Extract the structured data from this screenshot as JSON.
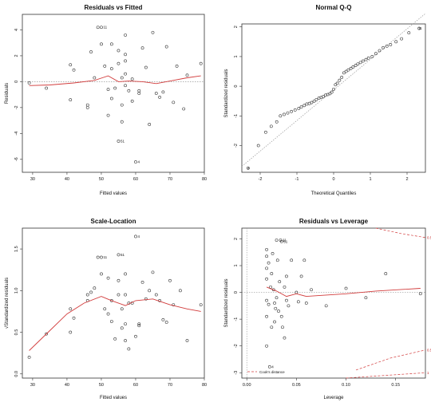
{
  "chart_data": [
    {
      "type": "scatter",
      "title": "Residuals vs Fitted",
      "xlabel": "Fitted values",
      "ylabel": "Residuals",
      "xlim": [
        27,
        80
      ],
      "ylim": [
        -7,
        5.2
      ],
      "xticks": [
        "30",
        "40",
        "50",
        "60",
        "70",
        "80"
      ],
      "yticks": [
        "-6",
        "-4",
        "-2",
        "0",
        "2",
        "4"
      ],
      "xtickvals": [
        30,
        40,
        50,
        60,
        70,
        80
      ],
      "ytickvals": [
        -6,
        -4,
        -2,
        0,
        2,
        4
      ],
      "refline": {
        "type": "hline",
        "value": 0,
        "style": "dotted"
      },
      "points": [
        [
          29,
          -0.1
        ],
        [
          34,
          -0.5
        ],
        [
          41,
          1.3
        ],
        [
          41,
          -1.4
        ],
        [
          42,
          0.9
        ],
        [
          46,
          -1.8
        ],
        [
          46,
          -2.0
        ],
        [
          47,
          2.3
        ],
        [
          48,
          0.3
        ],
        [
          49,
          4.2
        ],
        [
          50,
          4.2
        ],
        [
          50,
          2.9
        ],
        [
          51,
          1.2
        ],
        [
          52,
          -0.6
        ],
        [
          52,
          -2.6
        ],
        [
          53,
          2.9
        ],
        [
          53,
          1.0
        ],
        [
          53,
          -1.3
        ],
        [
          54,
          -0.5
        ],
        [
          55,
          -4.6
        ],
        [
          55,
          2.4
        ],
        [
          55,
          1.4
        ],
        [
          56,
          0.3
        ],
        [
          56,
          -1.8
        ],
        [
          56,
          -3.1
        ],
        [
          57,
          3.6
        ],
        [
          57,
          1.6
        ],
        [
          57,
          2.1
        ],
        [
          57,
          0.6
        ],
        [
          57,
          -0.3
        ],
        [
          58,
          -0.7
        ],
        [
          59,
          -1.5
        ],
        [
          59,
          0.2
        ],
        [
          60,
          -6.2
        ],
        [
          61,
          -0.9
        ],
        [
          61,
          -0.7
        ],
        [
          62,
          2.6
        ],
        [
          63,
          1.1
        ],
        [
          64,
          -3.3
        ],
        [
          65,
          3.8
        ],
        [
          66,
          -0.9
        ],
        [
          67,
          -1.2
        ],
        [
          68,
          -0.8
        ],
        [
          69,
          2.7
        ],
        [
          71,
          -1.6
        ],
        [
          72,
          1.2
        ],
        [
          74,
          -2.1
        ],
        [
          75,
          0.5
        ],
        [
          79,
          1.4
        ]
      ],
      "smooth": [
        [
          29,
          -0.3
        ],
        [
          35,
          -0.25
        ],
        [
          42,
          -0.1
        ],
        [
          48,
          0.1
        ],
        [
          52,
          0.45
        ],
        [
          55,
          0.0
        ],
        [
          58,
          0.05
        ],
        [
          62,
          0.0
        ],
        [
          66,
          -0.15
        ],
        [
          70,
          0.05
        ],
        [
          75,
          0.3
        ],
        [
          79,
          0.45
        ]
      ],
      "labels": [
        {
          "text": "11",
          "x": 50,
          "y": 4.2
        },
        {
          "text": "51",
          "x": 55,
          "y": -4.6
        },
        {
          "text": "4",
          "x": 60,
          "y": -6.2
        }
      ]
    },
    {
      "type": "scatter",
      "title": "Normal Q-Q",
      "xlabel": "Theoretical Quantiles",
      "ylabel": "Standardized residuals",
      "xlim": [
        -2.5,
        2.5
      ],
      "ylim": [
        -2.9,
        2.1
      ],
      "xticks": [
        "-2",
        "-1",
        "0",
        "1",
        "2"
      ],
      "yticks": [
        "-2",
        "-1",
        "0",
        "1",
        "2"
      ],
      "xtickvals": [
        -2,
        -1,
        0,
        1,
        2
      ],
      "ytickvals": [
        -2,
        -1,
        0,
        1,
        2
      ],
      "refline": {
        "type": "line",
        "from": [
          -2.5,
          -2.7
        ],
        "to": [
          2.5,
          2.45
        ],
        "style": "dotted"
      },
      "points": [
        [
          -2.33,
          -2.76
        ],
        [
          -2.05,
          -2.0
        ],
        [
          -1.85,
          -1.55
        ],
        [
          -1.7,
          -1.35
        ],
        [
          -1.55,
          -1.2
        ],
        [
          -1.45,
          -1.0
        ],
        [
          -1.35,
          -0.95
        ],
        [
          -1.25,
          -0.9
        ],
        [
          -1.15,
          -0.85
        ],
        [
          -1.05,
          -0.8
        ],
        [
          -0.95,
          -0.75
        ],
        [
          -0.88,
          -0.7
        ],
        [
          -0.8,
          -0.65
        ],
        [
          -0.73,
          -0.6
        ],
        [
          -0.66,
          -0.58
        ],
        [
          -0.6,
          -0.55
        ],
        [
          -0.53,
          -0.5
        ],
        [
          -0.47,
          -0.45
        ],
        [
          -0.4,
          -0.4
        ],
        [
          -0.34,
          -0.38
        ],
        [
          -0.28,
          -0.35
        ],
        [
          -0.22,
          -0.3
        ],
        [
          -0.16,
          -0.28
        ],
        [
          -0.1,
          -0.25
        ],
        [
          -0.05,
          -0.2
        ],
        [
          0.0,
          -0.1
        ],
        [
          0.05,
          0.05
        ],
        [
          0.1,
          0.1
        ],
        [
          0.16,
          0.2
        ],
        [
          0.22,
          0.3
        ],
        [
          0.28,
          0.45
        ],
        [
          0.34,
          0.5
        ],
        [
          0.4,
          0.55
        ],
        [
          0.47,
          0.6
        ],
        [
          0.53,
          0.65
        ],
        [
          0.6,
          0.7
        ],
        [
          0.66,
          0.75
        ],
        [
          0.73,
          0.8
        ],
        [
          0.8,
          0.85
        ],
        [
          0.88,
          0.9
        ],
        [
          0.95,
          0.95
        ],
        [
          1.05,
          1.0
        ],
        [
          1.15,
          1.1
        ],
        [
          1.25,
          1.2
        ],
        [
          1.35,
          1.3
        ],
        [
          1.45,
          1.35
        ],
        [
          1.55,
          1.4
        ],
        [
          1.7,
          1.5
        ],
        [
          1.85,
          1.6
        ],
        [
          2.05,
          1.8
        ],
        [
          2.33,
          1.95
        ]
      ],
      "labels": [
        {
          "text": "11",
          "x": 2.25,
          "y": 1.95
        },
        {
          "text": "4",
          "x": -2.4,
          "y": -2.76
        }
      ]
    },
    {
      "type": "scatter",
      "title": "Scale-Location",
      "xlabel": "Fitted values",
      "ylabel": "√Standardized residuals",
      "xlim": [
        27,
        80
      ],
      "ylim": [
        -0.05,
        1.75
      ],
      "xticks": [
        "30",
        "40",
        "50",
        "60",
        "70",
        "80"
      ],
      "yticks": [
        "0.0",
        "0.5",
        "1.0",
        "1.5"
      ],
      "xtickvals": [
        30,
        40,
        50,
        60,
        70,
        80
      ],
      "ytickvals": [
        0,
        0.5,
        1.0,
        1.5
      ],
      "points": [
        [
          29,
          0.2
        ],
        [
          34,
          0.48
        ],
        [
          41,
          0.5
        ],
        [
          41,
          0.78
        ],
        [
          42,
          0.67
        ],
        [
          46,
          0.88
        ],
        [
          46,
          0.95
        ],
        [
          47,
          0.98
        ],
        [
          48,
          1.03
        ],
        [
          49,
          1.4
        ],
        [
          50,
          1.4
        ],
        [
          50,
          1.2
        ],
        [
          51,
          0.78
        ],
        [
          52,
          0.72
        ],
        [
          52,
          1.15
        ],
        [
          53,
          0.88
        ],
        [
          53,
          0.63
        ],
        [
          54,
          0.42
        ],
        [
          55,
          1.43
        ],
        [
          55,
          1.12
        ],
        [
          55,
          0.95
        ],
        [
          56,
          0.78
        ],
        [
          56,
          0.55
        ],
        [
          57,
          1.2
        ],
        [
          57,
          0.95
        ],
        [
          57,
          0.4
        ],
        [
          57,
          0.6
        ],
        [
          58,
          0.3
        ],
        [
          58,
          0.85
        ],
        [
          59,
          0.85
        ],
        [
          60,
          1.65
        ],
        [
          60,
          0.45
        ],
        [
          61,
          0.6
        ],
        [
          61,
          0.58
        ],
        [
          62,
          1.1
        ],
        [
          63,
          0.9
        ],
        [
          64,
          1.0
        ],
        [
          65,
          1.22
        ],
        [
          66,
          0.95
        ],
        [
          67,
          0.88
        ],
        [
          68,
          0.65
        ],
        [
          69,
          0.62
        ],
        [
          70,
          1.12
        ],
        [
          71,
          0.83
        ],
        [
          73,
          1.0
        ],
        [
          75,
          0.4
        ],
        [
          79,
          0.83
        ]
      ],
      "smooth": [
        [
          29,
          0.28
        ],
        [
          35,
          0.52
        ],
        [
          40,
          0.72
        ],
        [
          45,
          0.85
        ],
        [
          50,
          0.93
        ],
        [
          53,
          0.88
        ],
        [
          57,
          0.82
        ],
        [
          60,
          0.88
        ],
        [
          65,
          0.9
        ],
        [
          70,
          0.83
        ],
        [
          75,
          0.78
        ],
        [
          79,
          0.75
        ]
      ],
      "labels": [
        {
          "text": "11",
          "x": 50,
          "y": 1.4
        },
        {
          "text": "51",
          "x": 55,
          "y": 1.43
        },
        {
          "text": "4",
          "x": 60,
          "y": 1.65
        }
      ]
    },
    {
      "type": "scatter",
      "title": "Residuals vs Leverage",
      "xlabel": "Leverage",
      "ylabel": "Standardized residuals",
      "xlim": [
        -0.005,
        0.18
      ],
      "ylim": [
        -3.2,
        2.4
      ],
      "xticks": [
        "0.00",
        "0.05",
        "0.10",
        "0.15"
      ],
      "yticks": [
        "-3",
        "-2",
        "-1",
        "0",
        "1",
        "2"
      ],
      "xtickvals": [
        0.0,
        0.05,
        0.1,
        0.15
      ],
      "ytickvals": [
        -3,
        -2,
        -1,
        0,
        1,
        2
      ],
      "refline": {
        "type": "hline",
        "value": 0,
        "style": "dotted"
      },
      "points": [
        [
          0.02,
          1.6
        ],
        [
          0.02,
          1.35
        ],
        [
          0.02,
          0.9
        ],
        [
          0.02,
          0.5
        ],
        [
          0.02,
          -0.3
        ],
        [
          0.02,
          -0.9
        ],
        [
          0.02,
          -2.0
        ],
        [
          0.022,
          -0.45
        ],
        [
          0.022,
          1.1
        ],
        [
          0.023,
          -2.78
        ],
        [
          0.024,
          0.2
        ],
        [
          0.025,
          -1.3
        ],
        [
          0.025,
          0.7
        ],
        [
          0.026,
          1.45
        ],
        [
          0.027,
          0.1
        ],
        [
          0.028,
          -0.4
        ],
        [
          0.028,
          -1.1
        ],
        [
          0.029,
          -0.6
        ],
        [
          0.03,
          1.95
        ],
        [
          0.03,
          -0.2
        ],
        [
          0.031,
          1.2
        ],
        [
          0.032,
          -0.7
        ],
        [
          0.033,
          0.4
        ],
        [
          0.034,
          1.95
        ],
        [
          0.035,
          1.9
        ],
        [
          0.035,
          -0.9
        ],
        [
          0.036,
          -1.3
        ],
        [
          0.038,
          -1.7
        ],
        [
          0.038,
          0.2
        ],
        [
          0.04,
          -0.3
        ],
        [
          0.04,
          0.6
        ],
        [
          0.042,
          -0.5
        ],
        [
          0.045,
          1.2
        ],
        [
          0.05,
          0.0
        ],
        [
          0.052,
          -0.35
        ],
        [
          0.055,
          0.6
        ],
        [
          0.058,
          1.2
        ],
        [
          0.06,
          -0.4
        ],
        [
          0.065,
          0.1
        ],
        [
          0.08,
          -0.5
        ],
        [
          0.1,
          0.15
        ],
        [
          0.12,
          -0.2
        ],
        [
          0.14,
          0.7
        ],
        [
          0.175,
          -0.05
        ]
      ],
      "smooth": [
        [
          0.02,
          0.2
        ],
        [
          0.03,
          0.05
        ],
        [
          0.04,
          -0.15
        ],
        [
          0.05,
          -0.05
        ],
        [
          0.06,
          -0.15
        ],
        [
          0.08,
          -0.1
        ],
        [
          0.1,
          -0.05
        ],
        [
          0.13,
          0.05
        ],
        [
          0.175,
          0.15
        ]
      ],
      "cook_label_values": [
        {
          "text": "0.5",
          "y": 2.05
        },
        {
          "text": "0.5",
          "y": -2.15
        },
        {
          "text": "1",
          "y": -3.0
        }
      ],
      "legend": {
        "position": "bottom-left",
        "label": "Cook's distance"
      },
      "labels": [
        {
          "text": "11",
          "x": 0.034,
          "y": 1.95
        },
        {
          "text": "51",
          "x": 0.035,
          "y": 1.9
        },
        {
          "text": "4",
          "x": 0.023,
          "y": -2.78
        }
      ]
    }
  ],
  "colors": {
    "smooth": "#d23c3c",
    "cook": "#d23c3c",
    "points": "#333333",
    "axis": "#333333",
    "ref": "#9a9a9a"
  }
}
